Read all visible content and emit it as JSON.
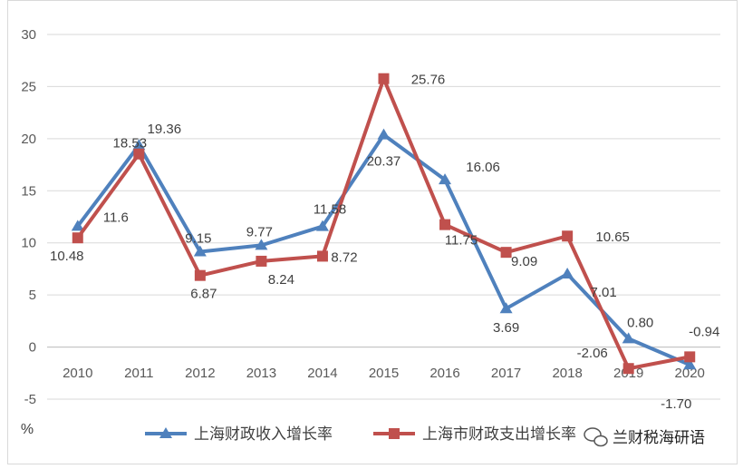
{
  "chart_data": {
    "type": "line",
    "categories": [
      "2010",
      "2011",
      "2012",
      "2013",
      "2014",
      "2015",
      "2016",
      "2017",
      "2018",
      "2019",
      "2020"
    ],
    "series": [
      {
        "name": "上海财政收入增长率",
        "color": "#4f81bd",
        "marker": "triangle",
        "values": [
          11.6,
          19.36,
          9.15,
          9.77,
          11.58,
          20.37,
          16.06,
          3.69,
          7.01,
          0.8,
          -1.7
        ],
        "labels": [
          "11.6",
          "19.36",
          "9.15",
          "9.77",
          "11.58",
          "20.37",
          "16.06",
          "3.69",
          "7.01",
          "0.80",
          "-1.70"
        ]
      },
      {
        "name": "上海市财政支出增长率",
        "color": "#c0504d",
        "marker": "square",
        "values": [
          10.48,
          18.53,
          6.87,
          8.24,
          8.72,
          25.76,
          11.75,
          9.09,
          10.65,
          -2.06,
          -0.94
        ],
        "labels": [
          "10.48",
          "18.53",
          "6.87",
          "8.24",
          "8.72",
          "25.76",
          "11.75",
          "9.09",
          "10.65",
          "-2.06",
          "-0.94"
        ]
      }
    ],
    "ylim": [
      -5,
      30
    ],
    "yticks": [
      "30",
      "25",
      "20",
      "15",
      "10",
      "5",
      "0",
      "-5"
    ],
    "yunit": "%",
    "grid": true,
    "legend": "bottom"
  },
  "watermark": {
    "text": "兰财税海研语",
    "icon": "wechat-icon"
  }
}
